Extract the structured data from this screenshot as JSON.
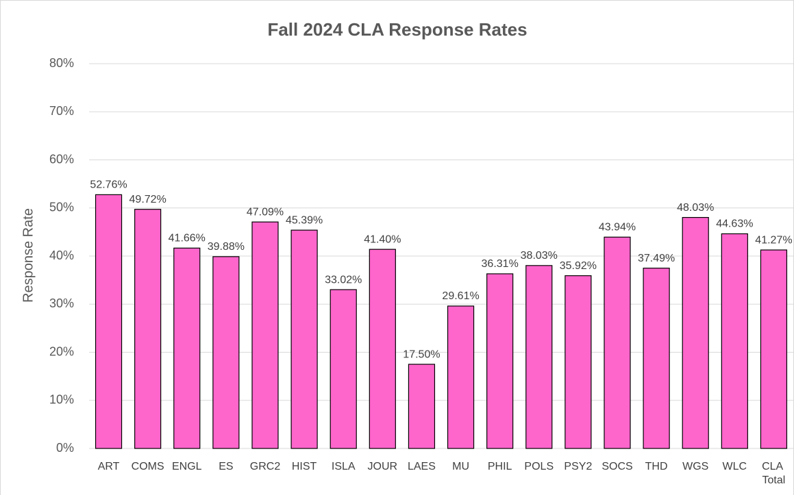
{
  "chart_data": {
    "type": "bar",
    "title": "Fall 2024 CLA Response Rates",
    "ylabel": "Response Rate",
    "categories": [
      "ART",
      "COMS",
      "ENGL",
      "ES",
      "GRC2",
      "HIST",
      "ISLA",
      "JOUR",
      "LAES",
      "MU",
      "PHIL",
      "POLS",
      "PSY2",
      "SOCS",
      "THD",
      "WGS",
      "WLC",
      "CLA Total"
    ],
    "values": [
      52.76,
      49.72,
      41.66,
      39.88,
      47.09,
      45.39,
      33.02,
      41.4,
      17.5,
      29.61,
      36.31,
      38.03,
      35.92,
      43.94,
      37.49,
      48.03,
      44.63,
      41.27
    ],
    "value_labels": [
      "52.76%",
      "49.72%",
      "41.66%",
      "39.88%",
      "47.09%",
      "45.39%",
      "33.02%",
      "41.40%",
      "17.50%",
      "29.61%",
      "36.31%",
      "38.03%",
      "35.92%",
      "43.94%",
      "37.49%",
      "48.03%",
      "44.63%",
      "41.27%"
    ],
    "color": "#ff66cc",
    "ylim": [
      0,
      80
    ],
    "yticks": [
      {
        "value": 0,
        "label": "0%"
      },
      {
        "value": 10,
        "label": "10%"
      },
      {
        "value": 20,
        "label": "20%"
      },
      {
        "value": 30,
        "label": "30%"
      },
      {
        "value": 40,
        "label": "40%"
      },
      {
        "value": 50,
        "label": "50%"
      },
      {
        "value": 60,
        "label": "60%"
      },
      {
        "value": 70,
        "label": "70%"
      },
      {
        "value": 80,
        "label": "80%"
      }
    ],
    "grid": true
  }
}
